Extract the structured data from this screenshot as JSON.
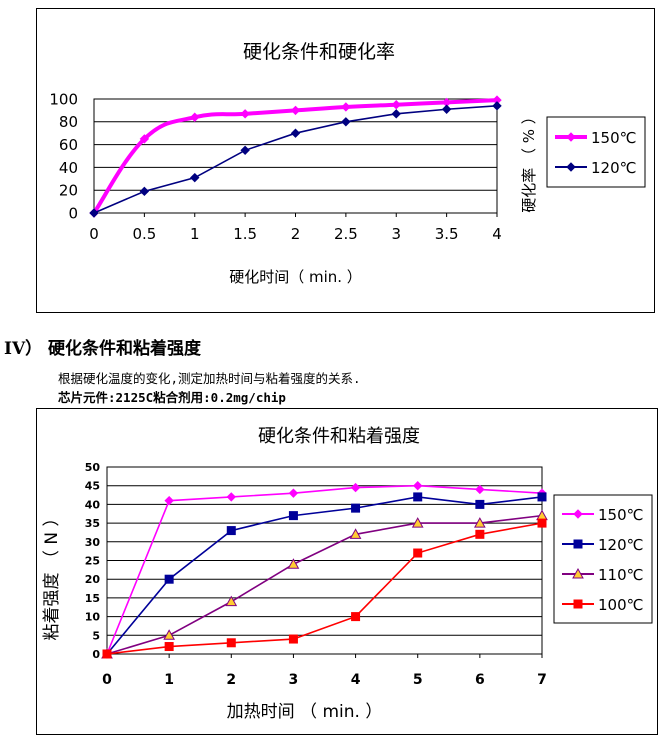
{
  "heading": "IV） 硬化条件和粘着强度",
  "notes": {
    "line1": "根据硬化温度的变化,测定加热时间与粘着强度的关系.",
    "line2": "芯片元件:2125C粘合剂用:0.2mg/chip"
  },
  "chart_data": [
    {
      "type": "line",
      "title": "硬化条件和硬化率",
      "xlabel": "硬化时间（ min. ）",
      "ylabel": "硬化率 （ % ）",
      "xlim": [
        0,
        4
      ],
      "ylim": [
        0,
        100
      ],
      "xticks": [
        "0",
        "0.5",
        "1",
        "1.5",
        "2",
        "2.5",
        "3",
        "3.5",
        "4"
      ],
      "yticks": [
        "0",
        "20",
        "40",
        "60",
        "80",
        "100"
      ],
      "grid": "horizontal",
      "legend": "right",
      "series": [
        {
          "name": "150℃",
          "color": "#ff00ff",
          "marker": "diamond",
          "smooth": true,
          "points": [
            [
              0,
              0
            ],
            [
              0.5,
              65
            ],
            [
              1,
              84
            ],
            [
              1.5,
              87
            ],
            [
              2,
              90
            ],
            [
              2.5,
              93
            ],
            [
              3,
              95
            ],
            [
              3.5,
              97
            ],
            [
              4,
              99
            ]
          ]
        },
        {
          "name": "120℃",
          "color": "#000080",
          "marker": "diamond",
          "smooth": false,
          "points": [
            [
              0,
              0
            ],
            [
              0.5,
              19
            ],
            [
              1,
              31
            ],
            [
              1.5,
              55
            ],
            [
              2,
              70
            ],
            [
              2.5,
              80
            ],
            [
              3,
              87
            ],
            [
              3.5,
              91
            ],
            [
              4,
              94
            ]
          ]
        }
      ]
    },
    {
      "type": "line",
      "title": "硬化条件和粘着强度",
      "xlabel": "加热时间 （ min. ）",
      "ylabel": "粘着强度 （ N ）",
      "xlim": [
        0,
        7
      ],
      "ylim": [
        0,
        50
      ],
      "xticks": [
        "0",
        "1",
        "2",
        "3",
        "4",
        "5",
        "6",
        "7"
      ],
      "yticks": [
        "0",
        "5",
        "10",
        "15",
        "20",
        "25",
        "30",
        "35",
        "40",
        "45",
        "50"
      ],
      "grid": "horizontal",
      "legend": "right",
      "series": [
        {
          "name": "150℃",
          "color": "#ff00ff",
          "marker": "diamond",
          "points": [
            [
              0,
              0
            ],
            [
              1,
              41
            ],
            [
              2,
              42
            ],
            [
              3,
              43
            ],
            [
              4,
              44.5
            ],
            [
              5,
              45
            ],
            [
              6,
              44
            ],
            [
              7,
              43
            ]
          ]
        },
        {
          "name": "120℃",
          "color": "#000099",
          "marker": "square",
          "points": [
            [
              0,
              0
            ],
            [
              1,
              20
            ],
            [
              2,
              33
            ],
            [
              3,
              37
            ],
            [
              4,
              39
            ],
            [
              5,
              42
            ],
            [
              6,
              40
            ],
            [
              7,
              42
            ]
          ]
        },
        {
          "name": "110℃",
          "color": "#800080",
          "markerFill": "#ffcc33",
          "marker": "triangle",
          "points": [
            [
              0,
              0
            ],
            [
              1,
              5
            ],
            [
              2,
              14
            ],
            [
              3,
              24
            ],
            [
              4,
              32
            ],
            [
              5,
              35
            ],
            [
              6,
              35
            ],
            [
              7,
              37
            ]
          ]
        },
        {
          "name": "100℃",
          "color": "#ff0000",
          "marker": "square",
          "points": [
            [
              0,
              0
            ],
            [
              1,
              2
            ],
            [
              2,
              3
            ],
            [
              3,
              4
            ],
            [
              4,
              10
            ],
            [
              5,
              27
            ],
            [
              6,
              32
            ],
            [
              7,
              35
            ]
          ]
        }
      ]
    }
  ]
}
